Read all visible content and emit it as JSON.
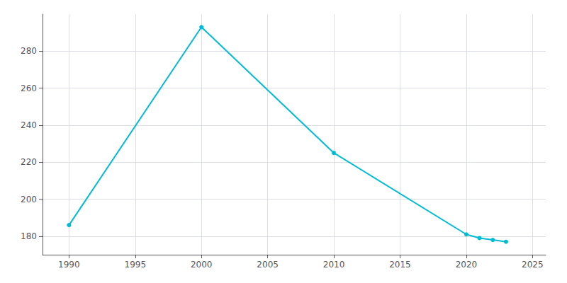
{
  "chart_data": {
    "type": "line",
    "x": [
      1990,
      2000,
      2010,
      2020,
      2021,
      2022,
      2023
    ],
    "values": [
      186,
      293,
      225,
      181,
      179,
      178,
      177
    ],
    "color": "#00bcd4",
    "marker": "circle",
    "xlim": [
      1988,
      2026
    ],
    "ylim": [
      170,
      300
    ],
    "xticks": [
      1990,
      1995,
      2000,
      2005,
      2010,
      2015,
      2020,
      2025
    ],
    "yticks": [
      180,
      200,
      220,
      240,
      260,
      280
    ],
    "grid": true
  }
}
